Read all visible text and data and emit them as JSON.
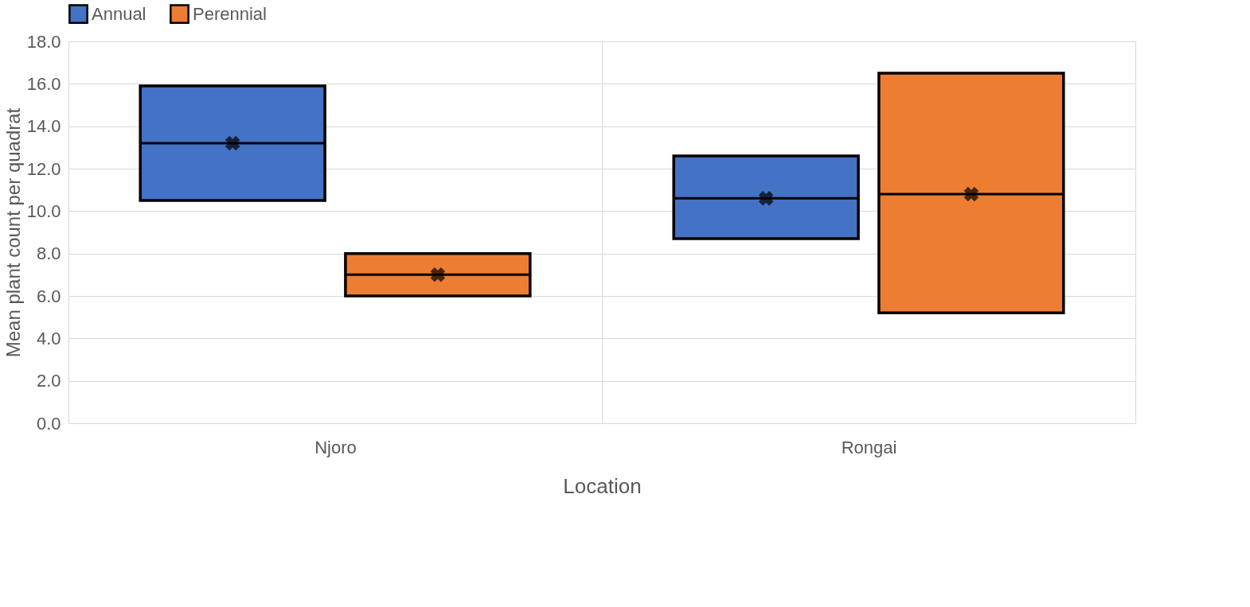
{
  "chart_data": {
    "type": "box",
    "xlabel": "Location",
    "ylabel": "Mean plant count per quadrat",
    "categories": [
      "Njoro",
      "Rongai"
    ],
    "series": [
      {
        "name": "Annual",
        "color": "#4472c4",
        "boxes": [
          {
            "low": 10.5,
            "q1": 10.5,
            "median": 13.2,
            "q3": 15.9,
            "high": 15.9,
            "mean": 13.2
          },
          {
            "low": 8.7,
            "q1": 8.7,
            "median": 10.6,
            "q3": 12.6,
            "high": 12.6,
            "mean": 10.6
          }
        ]
      },
      {
        "name": "Perennial",
        "color": "#ed7d31",
        "boxes": [
          {
            "low": 6.0,
            "q1": 6.0,
            "median": 7.0,
            "q3": 8.0,
            "high": 8.0,
            "mean": 7.0
          },
          {
            "low": 5.2,
            "q1": 5.2,
            "median": 10.8,
            "q3": 16.5,
            "high": 16.5,
            "mean": 10.8
          }
        ]
      }
    ],
    "ylim": [
      0,
      18
    ],
    "yticks": [
      {
        "value": 0,
        "label": "0.0"
      },
      {
        "value": 2,
        "label": "2.0"
      },
      {
        "value": 4,
        "label": "4.0"
      },
      {
        "value": 6,
        "label": "6.0"
      },
      {
        "value": 8,
        "label": "8.0"
      },
      {
        "value": 10,
        "label": "10.0"
      },
      {
        "value": 12,
        "label": "12.0"
      },
      {
        "value": 14,
        "label": "14.0"
      },
      {
        "value": 16,
        "label": "16.0"
      },
      {
        "value": 18,
        "label": "18.0"
      }
    ],
    "grid": true,
    "legend": "top"
  }
}
